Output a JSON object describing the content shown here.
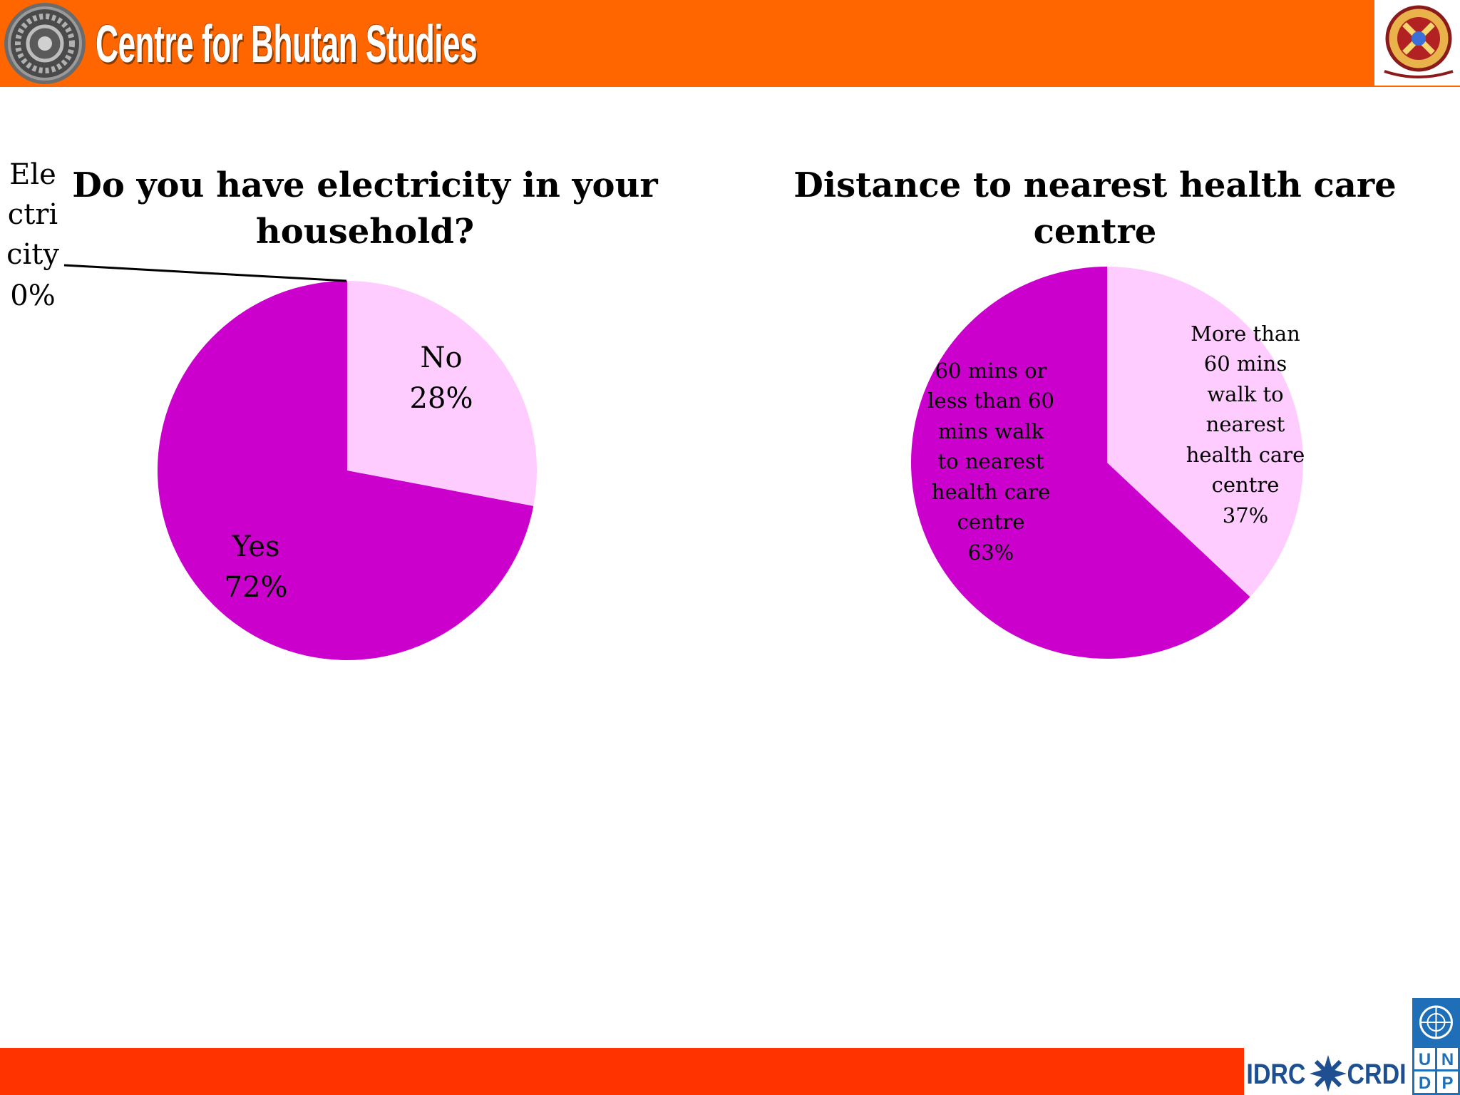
{
  "header": {
    "title": "Centre for Bhutan Studies"
  },
  "colors": {
    "header_bar": "#ff6600",
    "footer_bar": "#ff3300",
    "slice_dark": "#cc00cc",
    "slice_light": "#ffccff"
  },
  "footer": {
    "idrc_text": "IDRC",
    "crdi_text": "CRDI",
    "undp_letters": [
      "U",
      "N",
      "D",
      "P"
    ]
  },
  "chart_data": [
    {
      "type": "pie",
      "title_lines": [
        "Do you have electricity in your",
        "household?"
      ],
      "slices": [
        {
          "label": "No",
          "value": 28,
          "pct_text": "28%",
          "color": "#ffccff"
        },
        {
          "label": "Yes",
          "value": 72,
          "pct_text": "72%",
          "color": "#cc00cc"
        }
      ],
      "callout": {
        "label_lines": [
          "Ele",
          "ctri",
          "city"
        ],
        "pct_text": "0%",
        "value": 0
      }
    },
    {
      "type": "pie",
      "title_lines": [
        "Distance to nearest health care",
        "centre"
      ],
      "slices": [
        {
          "label_lines": [
            "More than",
            "60 mins",
            "walk to",
            "nearest",
            "health care",
            "centre"
          ],
          "value": 37,
          "pct_text": "37%",
          "color": "#ffccff"
        },
        {
          "label_lines": [
            "60 mins or",
            "less than 60",
            "mins walk",
            "to nearest",
            "health care",
            "centre"
          ],
          "value": 63,
          "pct_text": "63%",
          "color": "#cc00cc"
        }
      ]
    }
  ]
}
